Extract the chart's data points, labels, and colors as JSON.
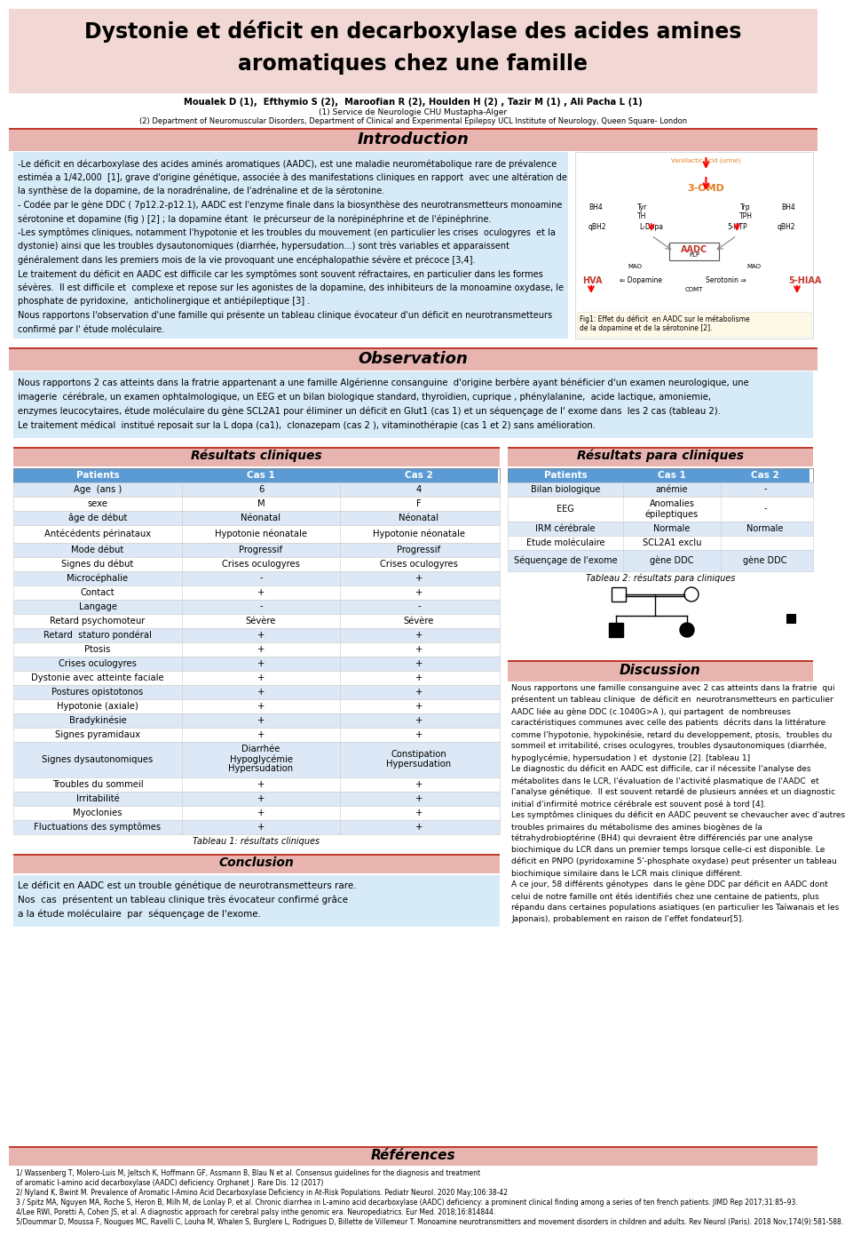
{
  "title_line1": "Dystonie et déficit en decarboxylase des acides amines",
  "title_line2": "aromatiques chez une famille",
  "authors": "Moualek D (1),  Efthymio S (2),  Maroofian R (2), Houlden H (2) , Tazir M (1) , Ali Pacha L (1)",
  "affil1": "(1) Service de Neurologie CHU Mustapha-Alger",
  "affil2": "(2) Department of Neuromuscular Disorders, Department of Clinical and Experimental Epilepsy UCL Institute of Neurology, Queen Square- London",
  "bg_color": "#ffffff",
  "title_bg": "#f2d8d4",
  "section_header_bg": "#e8b4b0",
  "section_text_bg": "#d6eaf8",
  "table_header_bg": "#5b9bd5",
  "table_header_color": "#ffffff",
  "table_row_alt": "#dce8f5",
  "table_row_main": "#ffffff",
  "intro_text_lines": [
    "-Le déficit en décarboxylase des acides aminés aromatiques (AADC), est une maladie neurométabolique rare de prévalence",
    "estiméa a 1/42,000  [1], grave d'origine génétique, associée à des manifestations cliniques en rapport  avec une altération de",
    "la synthèse de la dopamine, de la noradrénaline, de l'adrénaline et de la sérotonine.",
    "- Codée par le gène DDC ( 7p12.2-p12.1), AADC est l'enzyme finale dans la biosynthèse des neurotransmetteurs monoamine",
    "sérotonine et dopamine (fig ) [2] ; la dopamine étant  le précurseur de la norépinéphrine et de l'épinéphrine.",
    "-Les symptômes cliniques, notamment l'hypotonie et les troubles du mouvement (en particulier les crises  oculogyres  et la",
    "dystonie) ainsi que les troubles dysautonomiques (diarrhée, hypersudation...) sont très variables et apparaissent",
    "généralement dans les premiers mois de la vie provoquant une encéphalopathie sévère et précoce [3,4].",
    "Le traitement du déficit en AADC est difficile car les symptômes sont souvent réfractaires, en particulier dans les formes",
    "sévères.  Il est difficile et  complexe et repose sur les agonistes de la dopamine, des inhibiteurs de la monoamine oxydase, le",
    "phosphate de pyridoxine,  anticholinergique et antiépileptique [3] .",
    "Nous rapportons l'observation d'une famille qui présente un tableau clinique évocateur d'un déficit en neurotransmetteurs",
    "confirmé par l' étude moléculaire."
  ],
  "obs_text_lines": [
    "Nous rapportons 2 cas atteints dans la fratrie appartenant a une famille Algérienne consanguine  d'origine berbère ayant bénéficier d'un examen neurologique, une",
    "imagerie  cérébrale, un examen ophtalmologique, un EEG et un bilan biologique standard, thyroïdien, cuprique , phénylalanine,  acide lactique, amoniemie,",
    "enzymes leucocytaires, étude moléculaire du gène SCL2A1 pour éliminer un déficit en Glut1 (cas 1) et un séquençage de l' exome dans  les 2 cas (tableau 2).",
    "Le traitement médical  institué reposait sur la L dopa (ca1),  clonazepam (cas 2 ), vitaminothérapie (cas 1 et 2) sans amélioration."
  ],
  "clinical_table_headers": [
    "Patients",
    "Cas 1",
    "Cas 2"
  ],
  "clinical_table_rows": [
    [
      "Age  (ans )",
      "6",
      "4"
    ],
    [
      "sexe",
      "M",
      "F"
    ],
    [
      "âge de début",
      "Néonatal",
      "Néonatal"
    ],
    [
      "Antécédents périnataux",
      "Hypotonie néonatale",
      "Hypotonie néonatale"
    ],
    [
      "Mode début",
      "Progressif",
      "Progressif"
    ],
    [
      "Signes du début",
      "Crises oculogyres",
      "Crises oculogyres"
    ],
    [
      "Microcéphalie",
      "-",
      "+"
    ],
    [
      "Contact",
      "+",
      "+"
    ],
    [
      "Langage",
      "-",
      "-"
    ],
    [
      "Retard psychomoteur",
      "Sévère",
      "Sévère"
    ],
    [
      "Retard  staturo pondéral",
      "+",
      "+"
    ],
    [
      "Ptosis",
      "+",
      "+"
    ],
    [
      "Crises oculogyres",
      "+",
      "+"
    ],
    [
      "Dystonie avec atteinte faciale",
      "+",
      "+"
    ],
    [
      "Postures opistotonos",
      "+",
      "+"
    ],
    [
      "Hypotonie (axiale)",
      "+",
      "+"
    ],
    [
      "Bradykinésie",
      "+",
      "+"
    ],
    [
      "Signes pyramidaux",
      "+",
      "+"
    ],
    [
      "Signes dysautonomiques",
      "Diarrhée\nHypoglycémie\nHypersudation",
      "Constipation\nHypersudation"
    ],
    [
      "Troubles du sommeil",
      "+",
      "+"
    ],
    [
      "Irritabilité",
      "+",
      "+"
    ],
    [
      "Myoclonies",
      "+",
      "+"
    ],
    [
      "Fluctuations des symptômes",
      "+",
      "+"
    ]
  ],
  "paraclinical_table_headers": [
    "Patients",
    "Cas 1",
    "Cas 2"
  ],
  "paraclinical_table_rows": [
    [
      "Bilan biologique",
      "anémie",
      "-"
    ],
    [
      "EEG",
      "Anomalies\népileptiques",
      "-"
    ],
    [
      "IRM cérébrale",
      "Normale",
      "Normale"
    ],
    [
      "Etude moléculaire",
      "SCL2A1 exclu",
      ""
    ],
    [
      "Séquençage de l'exome",
      "gène DDC",
      "gène DDC"
    ]
  ],
  "discussion_text_lines": [
    "Nous rapportons une famille consanguine avec 2 cas atteints dans la fratrie  qui",
    "présentent un tableau clinique  de déficit en  neurotransmetteurs en particulier",
    "AADC liée au gène DDC (c.1040G>A ), qui partagent  de nombreuses",
    "caractéristiques communes avec celle des patients  décrits dans la littérature",
    "comme l'hypotonie, hypokinésie, retard du developpement, ptosis,  troubles du",
    "sommeil et irritabilité, crises oculogyres, troubles dysautonomiques (diarrhée,",
    "hypoglycémie, hypersudation ) et  dystonie [2]. [tableau 1]",
    "Le diagnostic du déficit en AADC est difficile, car il nécessite l'analyse des",
    "métabolites dans le LCR, l'évaluation de l'activité plasmatique de l'AADC  et",
    "l'analyse génétique.  Il est souvent retardé de plusieurs années et un diagnostic",
    "initial d'infirmité motrice cérébrale est souvent posé à tord [4].",
    "Les symptômes cliniques du déficit en AADC peuvent se chevaucher avec d'autres",
    "troubles primaires du métabolisme des amines biogènes de la",
    "tétrahydrobioptérine (BH4) qui devraient être différenciés par une analyse",
    "biochimique du LCR dans un premier temps lorsque celle-ci est disponible. Le",
    "déficit en PNPO (pyridoxamine 5'-phosphate oxydase) peut présenter un tableau",
    "biochimique similaire dans le LCR mais clinique différent.",
    "A ce jour, 58 différents génotypes  dans le gène DDC par déficit en AADC dont",
    "celui de notre famille ont étés identifiés chez une centaine de patients, plus",
    "répandu dans certaines populations asiatiques (en particulier les Taïwanais et les",
    "Japonais), probablement en raison de l'effet fondateur[5]."
  ],
  "conclusion_text_lines": [
    "Le déficit en AADC est un trouble génétique de neurotransmetteurs rare.",
    "Nos  cas  présentent un tableau clinique très évocateur confirmé grâce",
    "a la étude moléculaire  par  séquençage de l'exome."
  ],
  "references_text_lines": [
    "1/ Wassenberg T, Molero-Luis M, Jeltsch K, Hoffmann GF, Assmann B, Blau N et al. Consensus guidelines for the diagnosis and treatment",
    "of aromatic l-amino acid decarboxylase (AADC) deficiency. Orphanet J. Rare Dis. 12 (2017)",
    "2/ Nyland K, Bwint M. Prevalence of Aromatic l-Amino Acid Decarboxylase Deficiency in At-Risk Populations. Pediatr Neurol. 2020 May;106:38-42",
    "3 / Spitz MA, Nguyen MA, Roche S, Heron B, Milh M, de Lonlay P, et al. Chronic diarrhea in L-amino acid decarboxylase (AADC) deficiency: a prominent clinical finding among a series of ten french patients. JIMD Rep 2017;31:85–93.",
    "4/Lee RWI, Poretti A, Cohen JS, et al. A diagnostic approach for cerebral palsy inthe genomic era. Neuropediatrics. Eur Med. 2018;16:814844.",
    "5/Doummar D, Moussa F, Nougues MC, Ravelli C, Louha M, Whalen S, Burglere L, Rodrigues D, Billette de Villemeur T. Monoamine neurotransmitters and movement disorders in children and adults. Rev Neurol (Paris). 2018 Nov;174(9):581-588."
  ]
}
